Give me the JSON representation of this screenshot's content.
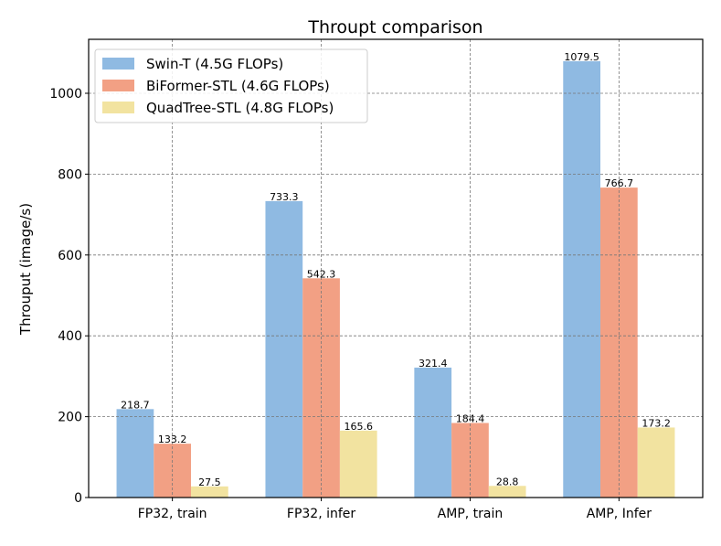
{
  "chart_data": {
    "type": "bar",
    "title": "Throupt comparison",
    "xlabel": "",
    "ylabel": "Throuput (image/s)",
    "categories": [
      "FP32, train",
      "FP32, infer",
      "AMP, train",
      "AMP, Infer"
    ],
    "series": [
      {
        "name": "Swin-T (4.5G FLOPs)",
        "color": "#8fbae2",
        "values": [
          218.7,
          733.3,
          321.4,
          1079.5
        ]
      },
      {
        "name": "BiFormer-STL (4.6G FLOPs)",
        "color": "#f2a084",
        "values": [
          133.2,
          542.3,
          184.4,
          766.7
        ]
      },
      {
        "name": "QuadTree-STL (4.8G FLOPs)",
        "color": "#f2e3a0",
        "values": [
          27.5,
          165.6,
          28.8,
          173.2
        ]
      }
    ],
    "ylim": [
      0,
      1133.5
    ],
    "yticks": [
      0,
      200,
      400,
      600,
      800,
      1000
    ],
    "grid": true,
    "legend": "top-left"
  }
}
